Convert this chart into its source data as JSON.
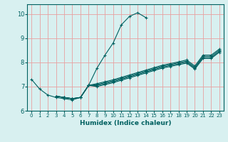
{
  "xlabel": "Humidex (Indice chaleur)",
  "bg_color": "#d8f0f0",
  "grid_color": "#e8a0a0",
  "line_color": "#006060",
  "xlim": [
    -0.5,
    23.5
  ],
  "ylim": [
    6,
    10.4
  ],
  "xticks": [
    0,
    1,
    2,
    3,
    4,
    5,
    6,
    7,
    8,
    9,
    10,
    11,
    12,
    13,
    14,
    15,
    16,
    17,
    18,
    19,
    20,
    21,
    22,
    23
  ],
  "yticks": [
    6,
    7,
    8,
    9,
    10
  ],
  "lines": [
    {
      "x": [
        0,
        1,
        2,
        3,
        4,
        5,
        6,
        7,
        8,
        9,
        10,
        11,
        12,
        13,
        14
      ],
      "y": [
        7.3,
        6.9,
        6.65,
        6.55,
        6.5,
        6.45,
        6.55,
        7.05,
        7.75,
        8.3,
        8.8,
        9.55,
        9.9,
        10.05,
        9.85
      ]
    },
    {
      "x": [
        3,
        4,
        5,
        6,
        7,
        8,
        9,
        10,
        11,
        12,
        13,
        14,
        15,
        16,
        17,
        18,
        19,
        20,
        21,
        22,
        23
      ],
      "y": [
        6.6,
        6.55,
        6.5,
        6.55,
        7.05,
        7.12,
        7.2,
        7.28,
        7.38,
        7.48,
        7.58,
        7.68,
        7.78,
        7.88,
        7.95,
        8.02,
        8.1,
        7.85,
        8.3,
        8.3,
        8.55
      ]
    },
    {
      "x": [
        3,
        4,
        5,
        6,
        7,
        8,
        9,
        10,
        11,
        12,
        13,
        14,
        15,
        16,
        17,
        18,
        19,
        20,
        21,
        22,
        23
      ],
      "y": [
        6.6,
        6.55,
        6.5,
        6.55,
        7.05,
        7.08,
        7.16,
        7.24,
        7.34,
        7.44,
        7.54,
        7.64,
        7.74,
        7.84,
        7.91,
        7.98,
        8.05,
        7.8,
        8.25,
        8.25,
        8.5
      ]
    },
    {
      "x": [
        3,
        4,
        5,
        6,
        7,
        8,
        9,
        10,
        11,
        12,
        13,
        14,
        15,
        16,
        17,
        18,
        19,
        20,
        21,
        22,
        23
      ],
      "y": [
        6.6,
        6.55,
        6.5,
        6.55,
        7.05,
        7.04,
        7.12,
        7.2,
        7.3,
        7.4,
        7.5,
        7.6,
        7.7,
        7.8,
        7.87,
        7.94,
        8.01,
        7.76,
        8.2,
        8.2,
        8.45
      ]
    },
    {
      "x": [
        3,
        4,
        5,
        6,
        7,
        8,
        9,
        10,
        11,
        12,
        13,
        14,
        15,
        16,
        17,
        18,
        19,
        20,
        21,
        22,
        23
      ],
      "y": [
        6.6,
        6.55,
        6.5,
        6.55,
        7.05,
        7.0,
        7.08,
        7.16,
        7.26,
        7.36,
        7.46,
        7.56,
        7.66,
        7.76,
        7.83,
        7.9,
        7.97,
        7.72,
        8.16,
        8.16,
        8.42
      ]
    }
  ]
}
